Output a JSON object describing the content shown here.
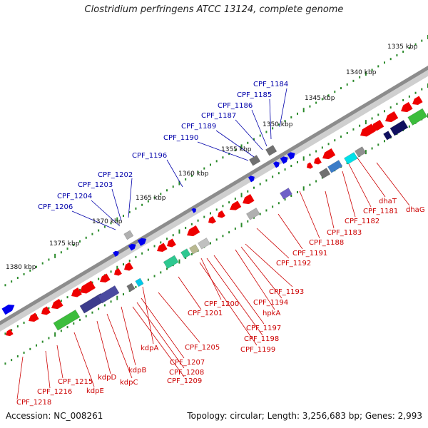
{
  "title": "Clostridium perfringens ATCC 13124, complete genome",
  "footer": {
    "accession": "Accession: NC_008261",
    "summary": "Topology: circular; Length: 3,256,683 bp; Genes: 2,993"
  },
  "colors": {
    "backbone": "#909090",
    "forward_gene": "#0000ee",
    "reverse_gene": "#ee0000",
    "forward_label": "#0000aa",
    "reverse_label": "#cc0000",
    "tick": "#2a8a2a"
  },
  "scale_labels": [
    "1335 kbp",
    "1340 kbp",
    "1345 kbp",
    "1350 kbp",
    "1355 kbp",
    "1360 kbp",
    "1365 kbp",
    "1370 kbp",
    "1375 kbp",
    "1380 kbp"
  ],
  "forward_labels": [
    "CPF_1184",
    "CPF_1185",
    "CPF_1186",
    "CPF_1187",
    "CPF_1189",
    "CPF_1190",
    "CPF_1196",
    "CPF_1202",
    "CPF_1203",
    "CPF_1204",
    "CPF_1206"
  ],
  "reverse_labels": [
    "dhaT",
    "dhaG",
    "CPF_1181",
    "CPF_1182",
    "CPF_1183",
    "CPF_1188",
    "CPF_1191",
    "CPF_1192",
    "CPF_1193",
    "CPF_1194",
    "hpkA",
    "CPF_1197",
    "CPF_1198",
    "CPF_1199",
    "CPF_1200",
    "CPF_1201",
    "CPF_1205",
    "kdpA",
    "CPF_1207",
    "CPF_1208",
    "CPF_1209",
    "kdpB",
    "kdpC",
    "kdpD",
    "kdpE",
    "CPF_1215",
    "CPF_1216",
    "CPF_1218"
  ]
}
